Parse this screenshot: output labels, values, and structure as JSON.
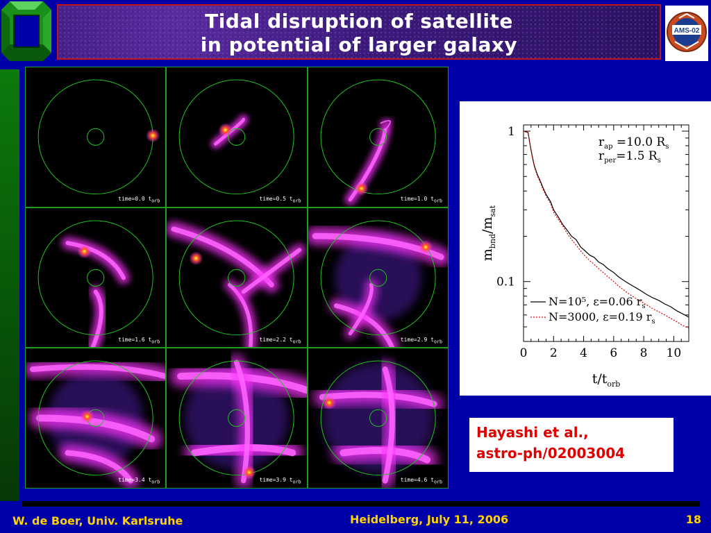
{
  "slide": {
    "title_line1": "Tidal disruption of satellite",
    "title_line2": "in potential of larger galaxy",
    "right_logo_text": "AMS-02"
  },
  "simulation": {
    "panels": [
      {
        "time_label": "time=0.0 t"
      },
      {
        "time_label": "time=0.5 t"
      },
      {
        "time_label": "time=1.0 t"
      },
      {
        "time_label": "time=1.6 t"
      },
      {
        "time_label": "time=2.2 t"
      },
      {
        "time_label": "time=2.9 t"
      },
      {
        "time_label": "time=3.4 t"
      },
      {
        "time_label": "time=3.9 t"
      },
      {
        "time_label": "time=4.6 t"
      }
    ],
    "time_subscript": "orb",
    "colors": {
      "orbit": "#1fc21f",
      "stream": "#ff33ff",
      "core": "#ffff40",
      "bg": "#000000"
    }
  },
  "chart_data": {
    "type": "line",
    "title": "",
    "xlabel": "t/t",
    "xlabel_sub": "orb",
    "ylabel": "m",
    "ylabel_sub1": "bnd",
    "ylabel_mid": "/m",
    "ylabel_sub2": "sat",
    "xlim": [
      0,
      11
    ],
    "ylim": [
      0.04,
      1.1
    ],
    "yscale": "log",
    "x_ticks": [
      "0",
      "2",
      "4",
      "6",
      "8",
      "10"
    ],
    "y_ticks": [
      "1",
      "0.1"
    ],
    "annotations": {
      "rap": "r",
      "rap_sub": "ap",
      "rap_val": " =10.0  R",
      "rap_unit_sub": "s",
      "rper": "r",
      "rper_sub": "per",
      "rper_val": "=1.5  R",
      "rper_unit_sub": "s"
    },
    "series": [
      {
        "name": "N=10⁵, ε=0.06  r",
        "name_sub": "s",
        "style": "solid",
        "color": "#000000",
        "x": [
          0,
          0.3,
          0.5,
          0.7,
          0.9,
          1.1,
          1.3,
          1.5,
          1.8,
          2.0,
          2.3,
          2.6,
          2.9,
          3.2,
          3.5,
          3.8,
          4.1,
          4.4,
          4.7,
          5.0,
          5.3,
          5.6,
          6.0,
          6.3,
          6.6,
          7.0,
          7.4,
          7.8,
          8.2,
          8.6,
          9.0,
          9.4,
          9.8,
          10.2,
          10.6,
          11.0
        ],
        "y": [
          1.0,
          0.98,
          0.75,
          0.6,
          0.52,
          0.47,
          0.42,
          0.38,
          0.34,
          0.3,
          0.27,
          0.24,
          0.22,
          0.2,
          0.19,
          0.17,
          0.16,
          0.15,
          0.145,
          0.135,
          0.13,
          0.122,
          0.115,
          0.108,
          0.103,
          0.097,
          0.092,
          0.087,
          0.082,
          0.078,
          0.075,
          0.071,
          0.068,
          0.064,
          0.061,
          0.058
        ]
      },
      {
        "name": "N=3000, ε=0.19  r",
        "name_sub": "s",
        "style": "dotted",
        "color": "#e00000",
        "x": [
          0,
          0.3,
          0.5,
          0.7,
          0.9,
          1.1,
          1.3,
          1.5,
          1.8,
          2.0,
          2.3,
          2.6,
          2.9,
          3.2,
          3.5,
          3.8,
          4.1,
          4.4,
          4.7,
          5.0,
          5.3,
          5.6,
          6.0,
          6.3,
          6.6,
          7.0,
          7.4,
          7.8,
          8.2,
          8.6,
          9.0,
          9.4,
          9.8,
          10.2,
          10.6,
          11.0
        ],
        "y": [
          1.0,
          0.98,
          0.74,
          0.59,
          0.51,
          0.46,
          0.41,
          0.37,
          0.33,
          0.29,
          0.26,
          0.235,
          0.21,
          0.19,
          0.175,
          0.16,
          0.148,
          0.138,
          0.13,
          0.122,
          0.115,
          0.108,
          0.1,
          0.094,
          0.089,
          0.083,
          0.078,
          0.074,
          0.07,
          0.066,
          0.063,
          0.06,
          0.057,
          0.054,
          0.051,
          0.049
        ]
      }
    ]
  },
  "citation": {
    "line1": "Hayashi et al.,",
    "line2": "astro-ph/02003004"
  },
  "footer": {
    "author": "W. de Boer, Univ. Karlsruhe",
    "venue": "Heidelberg, July 11, 2006",
    "slide_number": "18"
  }
}
